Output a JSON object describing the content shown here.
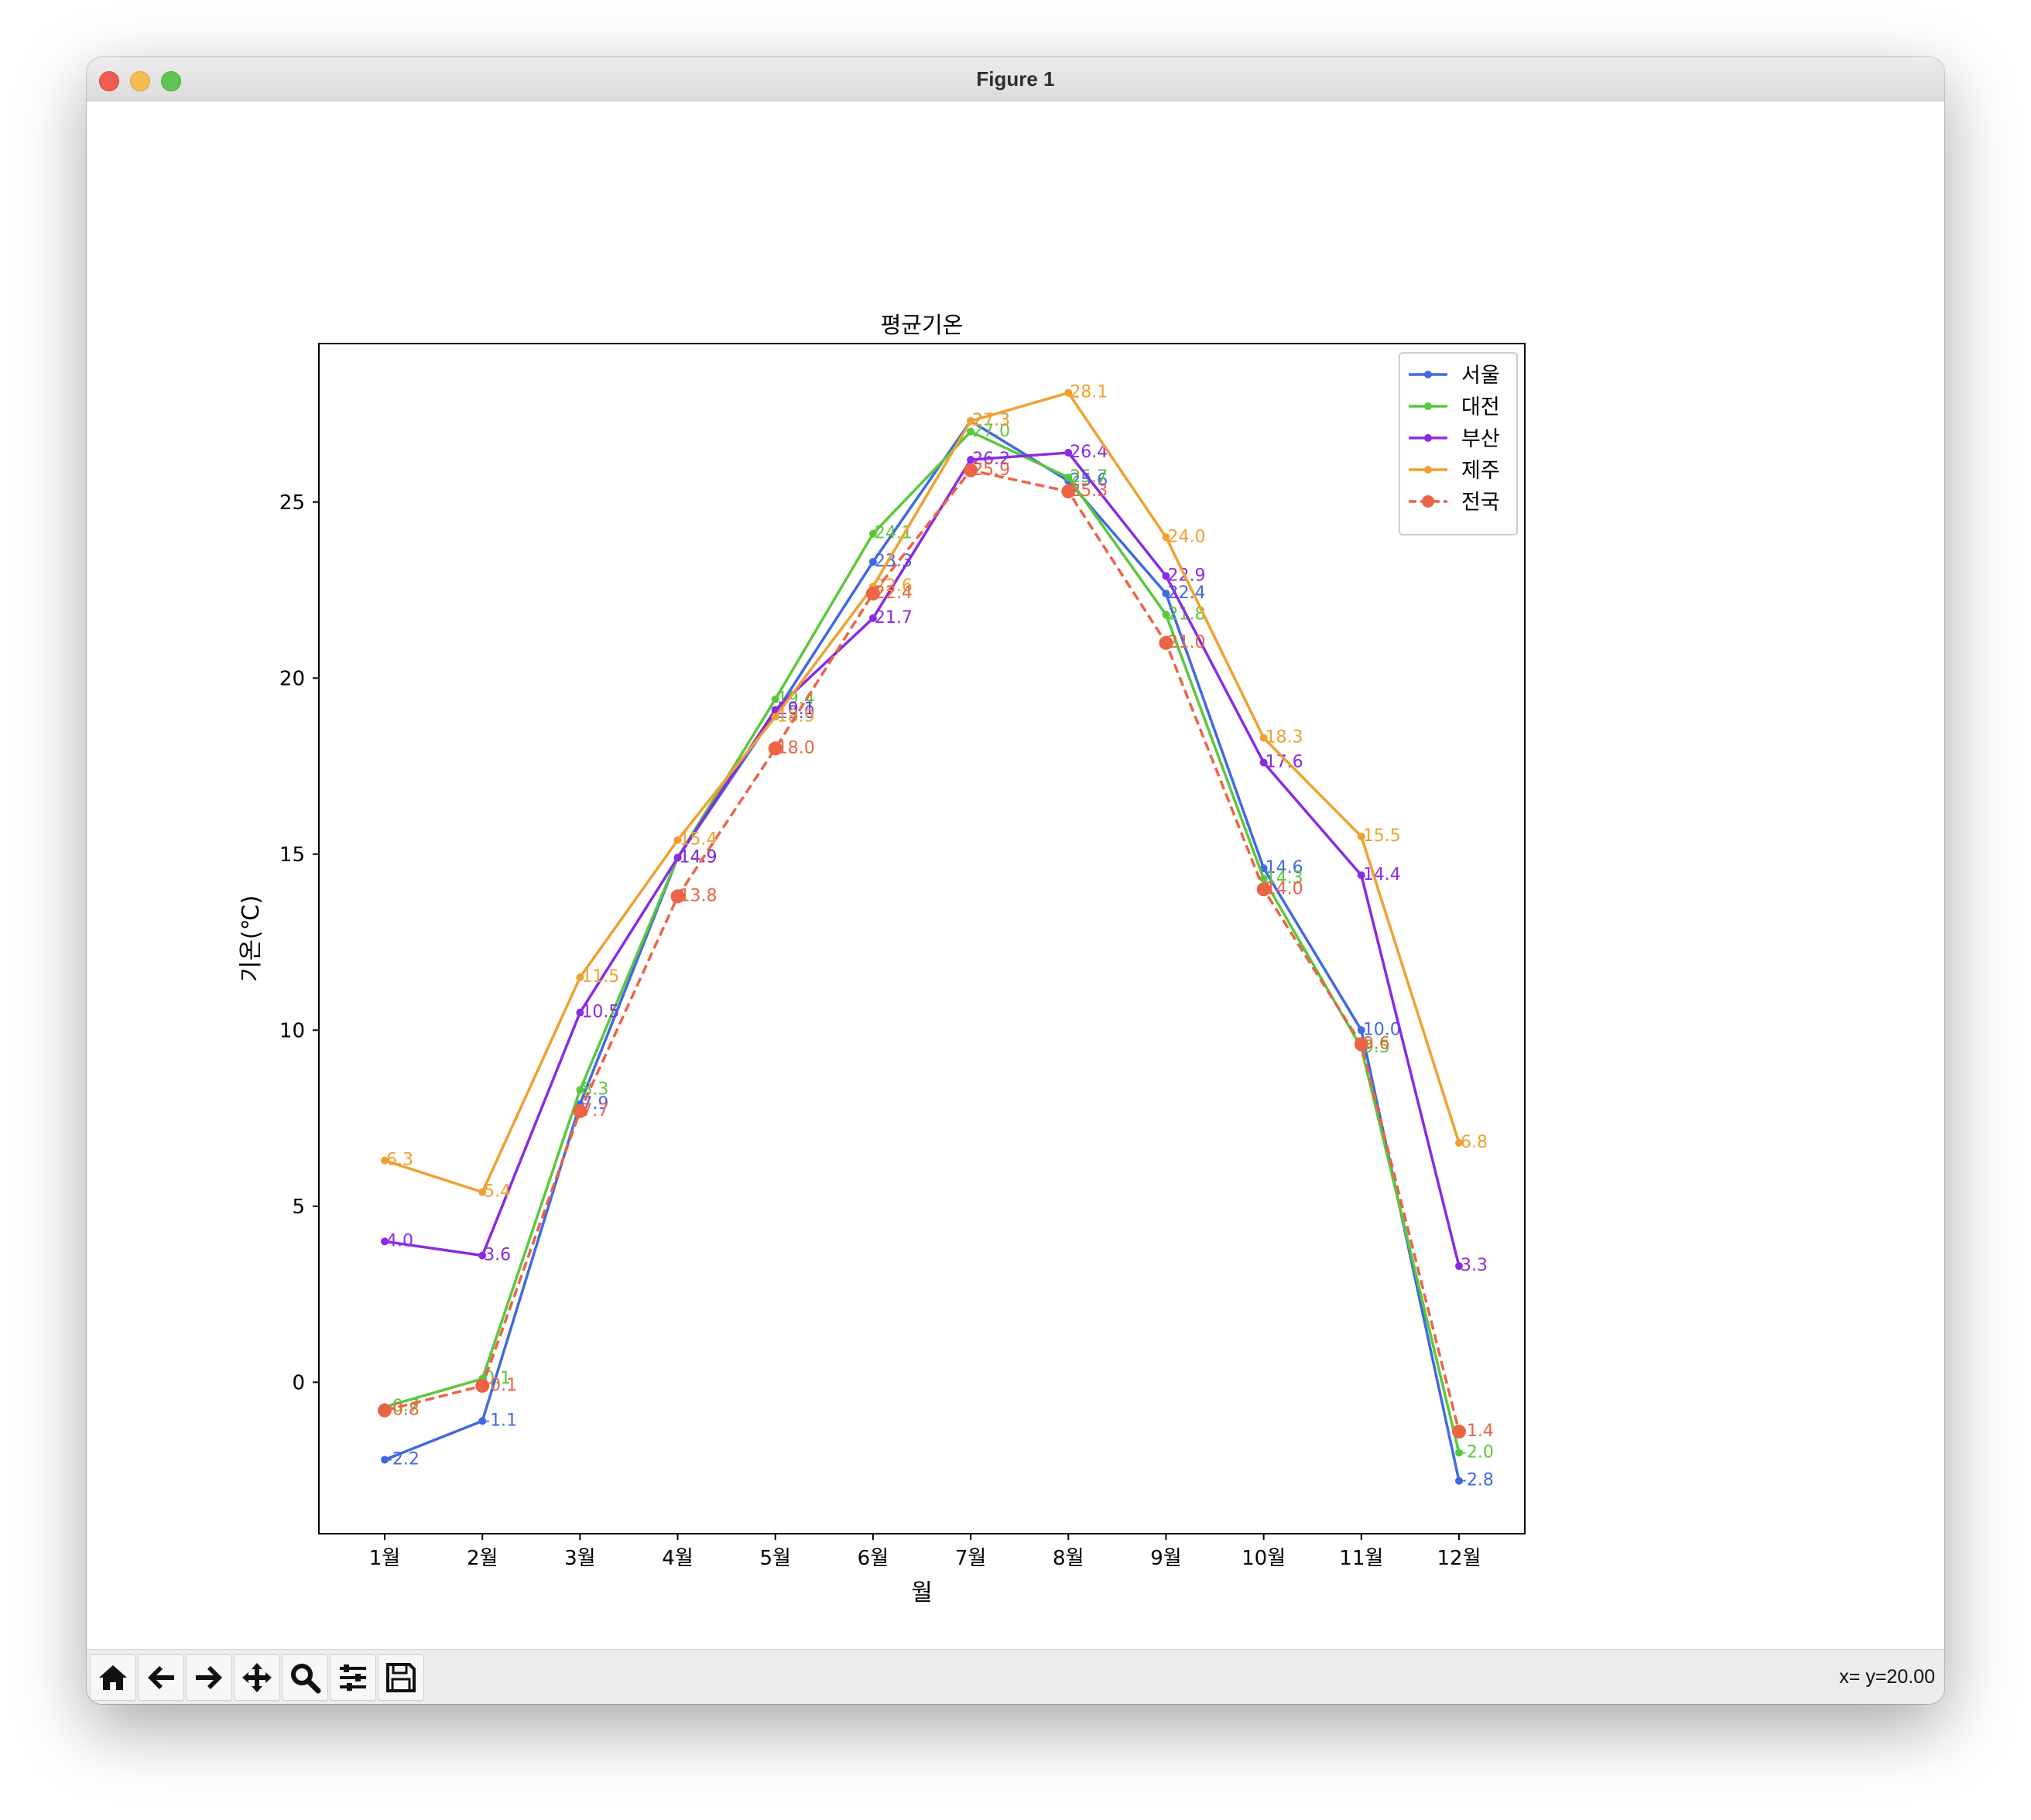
{
  "window": {
    "title": "Figure 1"
  },
  "toolbar": {
    "buttons": [
      {
        "name": "home-button",
        "icon": "home-icon"
      },
      {
        "name": "back-button",
        "icon": "arrow-left-icon"
      },
      {
        "name": "forward-button",
        "icon": "arrow-right-icon"
      },
      {
        "name": "pan-button",
        "icon": "move-icon"
      },
      {
        "name": "zoom-button",
        "icon": "search-icon"
      },
      {
        "name": "configure-subplots-button",
        "icon": "sliders-icon"
      },
      {
        "name": "save-button",
        "icon": "save-icon"
      }
    ]
  },
  "status": {
    "text": "x= y=20.00"
  },
  "chart_data": {
    "type": "line",
    "title": "평균기온",
    "xlabel": "월",
    "ylabel": "기온(℃)",
    "categories": [
      "1월",
      "2월",
      "3월",
      "4월",
      "5월",
      "6월",
      "7월",
      "8월",
      "9월",
      "10월",
      "11월",
      "12월"
    ],
    "ylim": [
      -4.3,
      29.5
    ],
    "yticks": [
      0,
      5,
      10,
      15,
      20,
      25
    ],
    "grid": false,
    "legend": "top-right",
    "series": [
      {
        "name": "서울",
        "color": "#4169e1",
        "style": "solid",
        "marker": "small",
        "values": [
          -2.2,
          -1.1,
          7.9,
          14.9,
          19.0,
          23.3,
          27.3,
          25.6,
          22.4,
          14.6,
          10.0,
          -2.8
        ]
      },
      {
        "name": "대전",
        "color": "#5ac83c",
        "style": "solid",
        "marker": "small",
        "values": [
          -0.7,
          0.1,
          8.3,
          14.9,
          19.4,
          24.1,
          27.0,
          25.7,
          21.8,
          14.3,
          9.5,
          -2.0
        ]
      },
      {
        "name": "부산",
        "color": "#8a2be2",
        "style": "solid",
        "marker": "small",
        "values": [
          4.0,
          3.6,
          10.5,
          14.9,
          19.1,
          21.7,
          26.2,
          26.4,
          22.9,
          17.6,
          14.4,
          3.3
        ]
      },
      {
        "name": "제주",
        "color": "#f0a030",
        "style": "solid",
        "marker": "small",
        "values": [
          6.3,
          5.4,
          11.5,
          15.4,
          18.9,
          22.6,
          27.3,
          28.1,
          24.0,
          18.3,
          15.5,
          6.8
        ]
      },
      {
        "name": "전국",
        "color": "#eb6446",
        "style": "dashed",
        "marker": "large",
        "values": [
          -0.8,
          -0.1,
          7.7,
          13.8,
          18.0,
          22.4,
          25.9,
          25.3,
          21.0,
          14.0,
          9.6,
          -1.4
        ]
      }
    ]
  }
}
